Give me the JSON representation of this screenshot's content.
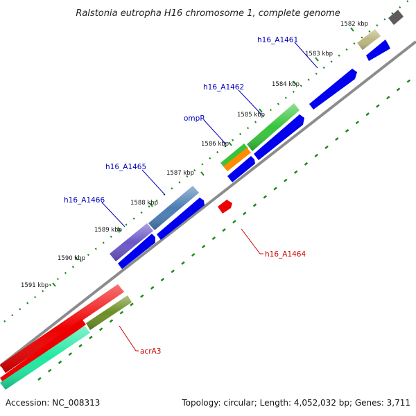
{
  "title": "Ralstonia eutropha H16 chromosome 1, complete genome",
  "footer": {
    "accession": "Accession: NC_008313",
    "summary": "Topology: circular; Length: 4,052,032 bp; Genes: 3,711"
  },
  "ticks": [
    "1582 kbp",
    "1583 kbp",
    "1584 kbp",
    "1585 kbp",
    "1586 kbp",
    "1587 kbp",
    "1588 kbp",
    "1589 kbp",
    "1590 kbp",
    "1591 kbp"
  ],
  "gene_labels": [
    {
      "text": "h16_A1461",
      "color": "#0000bb"
    },
    {
      "text": "h16_A1462",
      "color": "#0000bb"
    },
    {
      "text": "ompR",
      "color": "#0000bb"
    },
    {
      "text": "h16_A1465",
      "color": "#0000bb"
    },
    {
      "text": "h16_A1466",
      "color": "#0000bb"
    },
    {
      "text": "h16_A1464",
      "color": "#cc0000"
    },
    {
      "text": "acrA3",
      "color": "#cc0000"
    }
  ],
  "colors": {
    "backbone": "#8c8c8c",
    "cds": "#0000ee",
    "tick_dots": "#1a8a1a",
    "gc_skew_dashes": "#1a8a1a"
  }
}
